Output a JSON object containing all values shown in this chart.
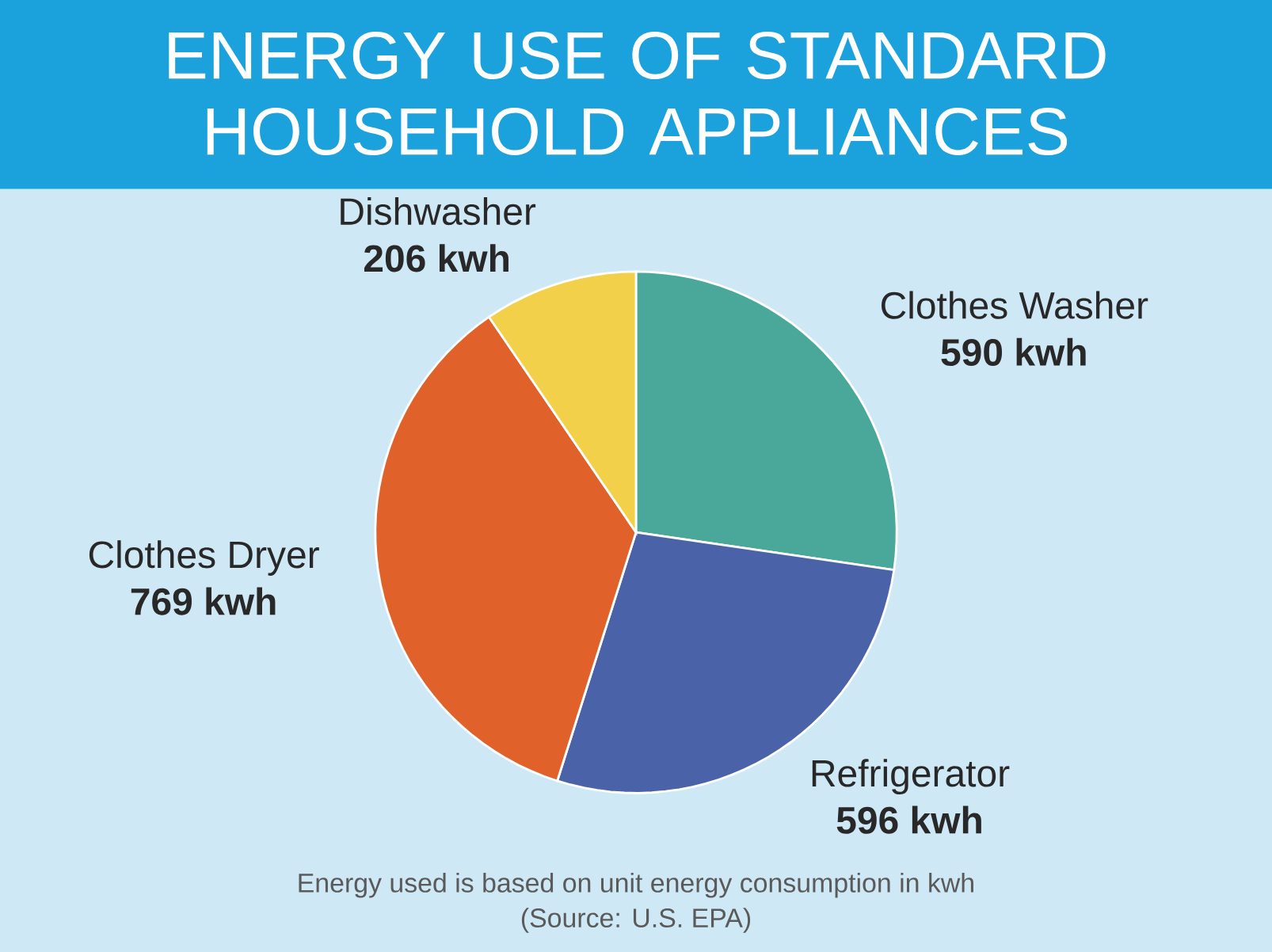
{
  "chart_data": {
    "type": "pie",
    "title": "ENERGY USE OF STANDARD HOUSEHOLD APPLIANCES",
    "categories": [
      "Clothes Washer",
      "Refrigerator",
      "Clothes Dryer",
      "Dishwasher"
    ],
    "values": [
      590,
      596,
      769,
      206
    ],
    "colors": [
      "#4aa89a",
      "#4a63a8",
      "#e0622a",
      "#f2d04a"
    ],
    "value_labels": [
      "590 kwh",
      "596 kwh",
      "769 kwh",
      "206 kwh"
    ],
    "annotations": [
      "Energy used is based on unit energy consumption in kwh",
      "(Source: U.S. EPA)"
    ]
  }
}
